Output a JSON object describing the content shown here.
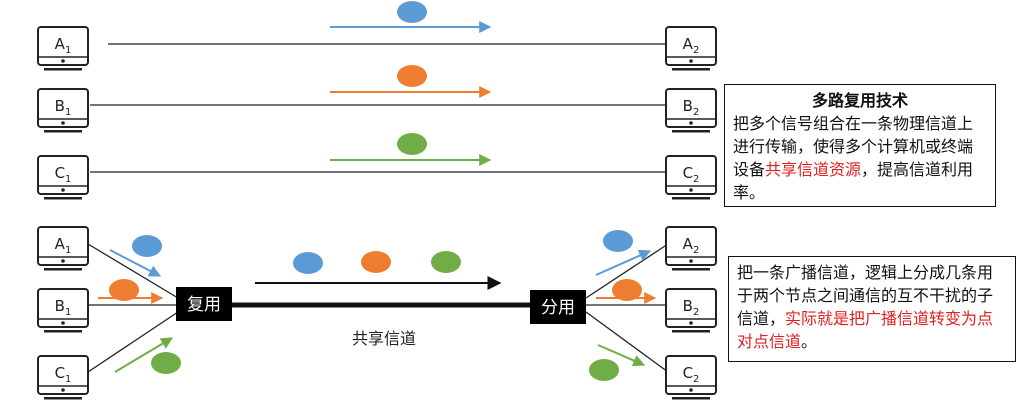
{
  "colors": {
    "blue": "#5b9bd5",
    "orange": "#ed7d31",
    "green": "#70ad47",
    "line": "#222222",
    "highlight": "#e02020"
  },
  "hosts": {
    "A1": {
      "base": "A",
      "sub": "1"
    },
    "A2": {
      "base": "A",
      "sub": "2"
    },
    "B1": {
      "base": "B",
      "sub": "1"
    },
    "B2": {
      "base": "B",
      "sub": "2"
    },
    "C1": {
      "base": "C",
      "sub": "1"
    },
    "C2": {
      "base": "C",
      "sub": "2"
    }
  },
  "multiplexer_label": "复用",
  "demultiplexer_label": "分用",
  "shared_channel_label": "共享信道",
  "box1": {
    "title": "多路复用技术",
    "text_before": "把多个信号组合在一条物理信道上进行传输，使得多个计算机或终端设备",
    "highlight": "共享信道资源",
    "text_after": "，提高信道利用率。"
  },
  "box2": {
    "text_before": "把一条广播信道，逻辑上分成几条用于两个节点之间通信的互不干扰的子信道，",
    "highlight": "实际就是把广播信道转变为点对点信道",
    "text_after": "。"
  }
}
